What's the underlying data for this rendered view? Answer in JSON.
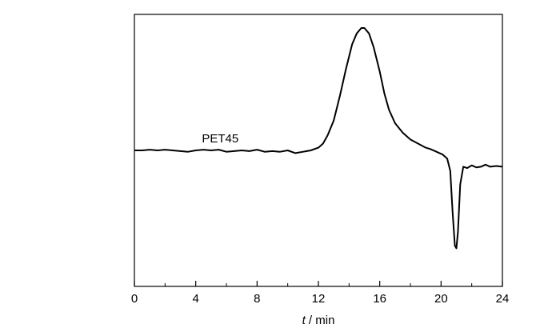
{
  "chart_data": {
    "type": "line",
    "xlabel_italic": "t",
    "xlabel_rest": " / min",
    "xlim": [
      0,
      24
    ],
    "x_ticks": [
      "0",
      "4",
      "8",
      "12",
      "16",
      "20",
      "24"
    ],
    "y_ticks_shown": false,
    "ylim": [
      -1,
      1
    ],
    "grid": false,
    "series": [
      {
        "name": "PET45",
        "color": "#000000",
        "points": [
          [
            0.0,
            0.0
          ],
          [
            0.5,
            0.0
          ],
          [
            1.0,
            0.005
          ],
          [
            1.5,
            0.0
          ],
          [
            2.0,
            0.005
          ],
          [
            2.5,
            0.0
          ],
          [
            3.0,
            -0.005
          ],
          [
            3.5,
            -0.01
          ],
          [
            4.0,
            0.0
          ],
          [
            4.5,
            0.005
          ],
          [
            5.0,
            0.0
          ],
          [
            5.5,
            0.005
          ],
          [
            6.0,
            -0.01
          ],
          [
            6.5,
            -0.005
          ],
          [
            7.0,
            0.0
          ],
          [
            7.5,
            -0.005
          ],
          [
            8.0,
            0.005
          ],
          [
            8.5,
            -0.01
          ],
          [
            9.0,
            -0.005
          ],
          [
            9.5,
            -0.01
          ],
          [
            10.0,
            0.0
          ],
          [
            10.5,
            -0.02
          ],
          [
            11.0,
            -0.01
          ],
          [
            11.5,
            0.0
          ],
          [
            12.0,
            0.02
          ],
          [
            12.3,
            0.05
          ],
          [
            12.6,
            0.11
          ],
          [
            13.0,
            0.22
          ],
          [
            13.4,
            0.4
          ],
          [
            13.8,
            0.6
          ],
          [
            14.2,
            0.78
          ],
          [
            14.5,
            0.86
          ],
          [
            14.8,
            0.9
          ],
          [
            15.0,
            0.9
          ],
          [
            15.3,
            0.86
          ],
          [
            15.6,
            0.76
          ],
          [
            16.0,
            0.58
          ],
          [
            16.3,
            0.42
          ],
          [
            16.6,
            0.3
          ],
          [
            17.0,
            0.2
          ],
          [
            17.5,
            0.13
          ],
          [
            18.0,
            0.08
          ],
          [
            18.5,
            0.05
          ],
          [
            19.0,
            0.02
          ],
          [
            19.3,
            0.01
          ],
          [
            19.6,
            -0.005
          ],
          [
            19.9,
            -0.02
          ],
          [
            20.1,
            -0.03
          ],
          [
            20.4,
            -0.06
          ],
          [
            20.6,
            -0.15
          ],
          [
            20.75,
            -0.45
          ],
          [
            20.9,
            -0.7
          ],
          [
            21.0,
            -0.72
          ],
          [
            21.1,
            -0.6
          ],
          [
            21.25,
            -0.25
          ],
          [
            21.45,
            -0.12
          ],
          [
            21.7,
            -0.13
          ],
          [
            22.0,
            -0.11
          ],
          [
            22.3,
            -0.125
          ],
          [
            22.6,
            -0.12
          ],
          [
            22.9,
            -0.105
          ],
          [
            23.2,
            -0.12
          ],
          [
            23.6,
            -0.115
          ],
          [
            24.0,
            -0.12
          ]
        ]
      }
    ],
    "series_label_position": [
      4.4,
      0.06
    ]
  }
}
